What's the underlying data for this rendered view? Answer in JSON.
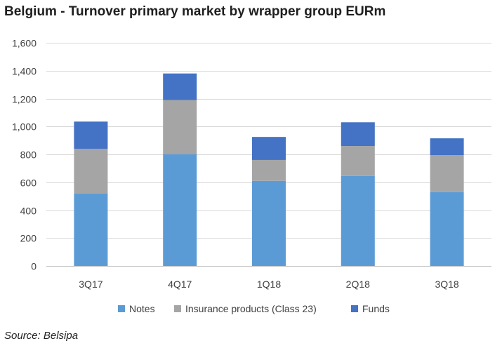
{
  "chart_data": {
    "type": "bar",
    "stacked": true,
    "title": "Belgium - Turnover primary market by wrapper group EURm",
    "xlabel": "",
    "ylabel": "",
    "categories": [
      "3Q17",
      "4Q17",
      "1Q18",
      "2Q18",
      "3Q18"
    ],
    "series": [
      {
        "name": "Notes",
        "color": "#5b9bd5",
        "values": [
          520,
          800,
          610,
          645,
          530
        ]
      },
      {
        "name": "Insurance products (Class 23)",
        "color": "#a5a5a5",
        "values": [
          320,
          390,
          150,
          215,
          265
        ]
      },
      {
        "name": "Funds",
        "color": "#4472c4",
        "values": [
          195,
          190,
          165,
          170,
          120
        ]
      }
    ],
    "ylim": [
      0,
      1600
    ],
    "yticks": [
      "0",
      "200",
      "400",
      "600",
      "800",
      "1,000",
      "1,200",
      "1,400",
      "1,600"
    ],
    "grid": true,
    "legend_position": "bottom"
  },
  "source": "Source: Belsipa"
}
